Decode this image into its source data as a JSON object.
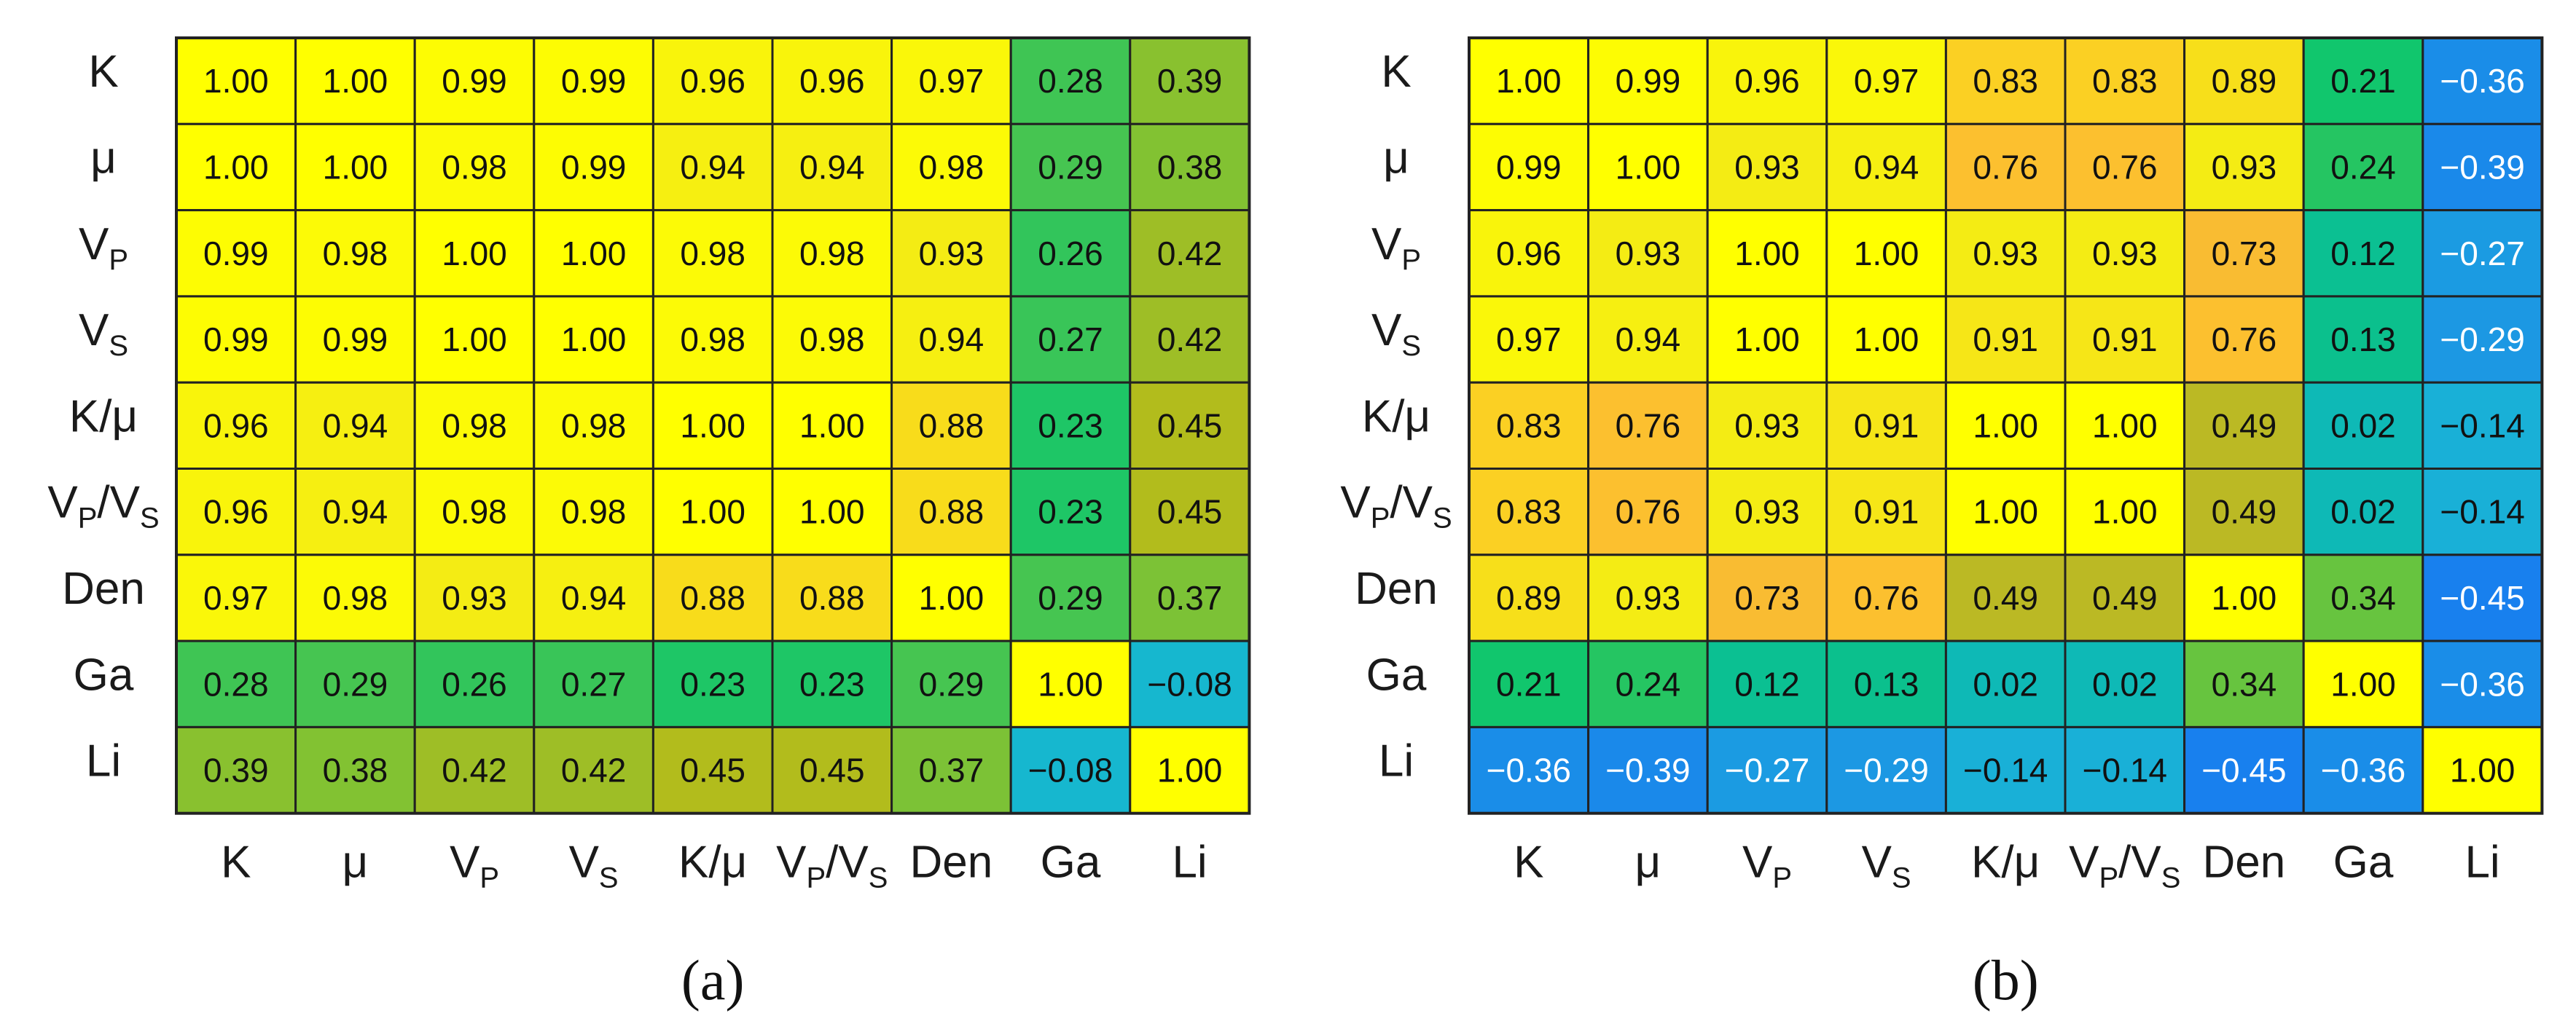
{
  "chart_data": [
    {
      "type": "heatmap",
      "panel_label": "(a)",
      "rows": [
        "K",
        "μ",
        "V_P",
        "V_S",
        "K/μ",
        "V_P/V_S",
        "Den",
        "Ga",
        "Li"
      ],
      "cols": [
        "K",
        "μ",
        "V_P",
        "V_S",
        "K/μ",
        "V_P/V_S",
        "Den",
        "Ga",
        "Li"
      ],
      "values": [
        [
          1.0,
          1.0,
          0.99,
          0.99,
          0.96,
          0.96,
          0.97,
          0.28,
          0.39
        ],
        [
          1.0,
          1.0,
          0.98,
          0.99,
          0.94,
          0.94,
          0.98,
          0.29,
          0.38
        ],
        [
          0.99,
          0.98,
          1.0,
          1.0,
          0.98,
          0.98,
          0.93,
          0.26,
          0.42
        ],
        [
          0.99,
          0.99,
          1.0,
          1.0,
          0.98,
          0.98,
          0.94,
          0.27,
          0.42
        ],
        [
          0.96,
          0.94,
          0.98,
          0.98,
          1.0,
          1.0,
          0.88,
          0.23,
          0.45
        ],
        [
          0.96,
          0.94,
          0.98,
          0.98,
          1.0,
          1.0,
          0.88,
          0.23,
          0.45
        ],
        [
          0.97,
          0.98,
          0.93,
          0.94,
          0.88,
          0.88,
          1.0,
          0.29,
          0.37
        ],
        [
          0.28,
          0.29,
          0.26,
          0.27,
          0.23,
          0.23,
          0.29,
          1.0,
          -0.08
        ],
        [
          0.39,
          0.38,
          0.42,
          0.42,
          0.45,
          0.45,
          0.37,
          -0.08,
          1.0
        ]
      ]
    },
    {
      "type": "heatmap",
      "panel_label": "(b)",
      "rows": [
        "K",
        "μ",
        "V_P",
        "V_S",
        "K/μ",
        "V_P/V_S",
        "Den",
        "Ga",
        "Li"
      ],
      "cols": [
        "K",
        "μ",
        "V_P",
        "V_S",
        "K/μ",
        "V_P/V_S",
        "Den",
        "Ga",
        "Li"
      ],
      "values": [
        [
          1.0,
          0.99,
          0.96,
          0.97,
          0.83,
          0.83,
          0.89,
          0.21,
          -0.36
        ],
        [
          0.99,
          1.0,
          0.93,
          0.94,
          0.76,
          0.76,
          0.93,
          0.24,
          -0.39
        ],
        [
          0.96,
          0.93,
          1.0,
          1.0,
          0.93,
          0.93,
          0.73,
          0.12,
          -0.27
        ],
        [
          0.97,
          0.94,
          1.0,
          1.0,
          0.91,
          0.91,
          0.76,
          0.13,
          -0.29
        ],
        [
          0.83,
          0.76,
          0.93,
          0.91,
          1.0,
          1.0,
          0.49,
          0.02,
          -0.14
        ],
        [
          0.83,
          0.76,
          0.93,
          0.91,
          1.0,
          1.0,
          0.49,
          0.02,
          -0.14
        ],
        [
          0.89,
          0.93,
          0.73,
          0.76,
          0.49,
          0.49,
          1.0,
          0.34,
          -0.45
        ],
        [
          0.21,
          0.24,
          0.12,
          0.13,
          0.02,
          0.02,
          0.34,
          1.0,
          -0.36
        ],
        [
          -0.36,
          -0.39,
          -0.27,
          -0.29,
          -0.14,
          -0.14,
          -0.45,
          -0.36,
          1.0
        ]
      ]
    }
  ]
}
